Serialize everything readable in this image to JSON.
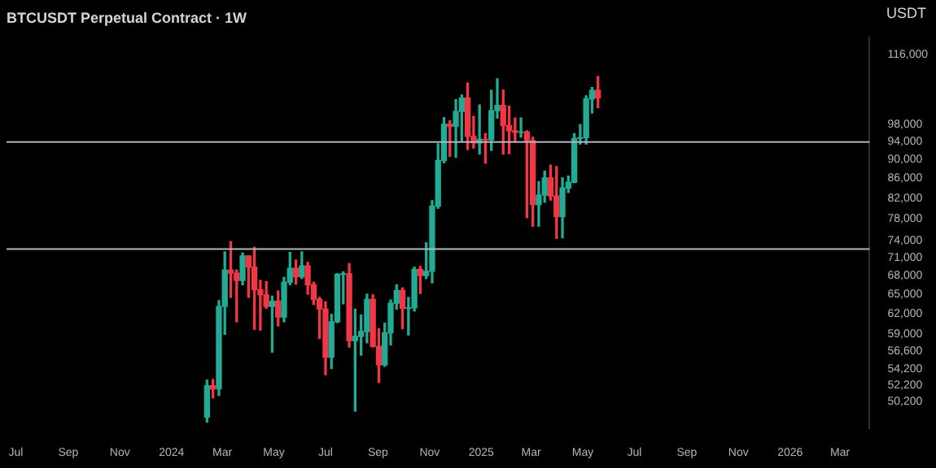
{
  "chart_data": {
    "type": "candlestick",
    "title": "BTCUSDT Perpetual Contract · 1W",
    "annotations": [
      "USDT"
    ],
    "x": [
      "2024-02-12",
      "2024-02-19",
      "2024-02-26",
      "2024-03-04",
      "2024-03-11",
      "2024-03-18",
      "2024-03-25",
      "2024-04-01",
      "2024-04-08",
      "2024-04-15",
      "2024-04-22",
      "2024-04-29",
      "2024-05-06",
      "2024-05-13",
      "2024-05-20",
      "2024-05-27",
      "2024-06-03",
      "2024-06-10",
      "2024-06-17",
      "2024-06-24",
      "2024-07-01",
      "2024-07-08",
      "2024-07-15",
      "2024-07-22",
      "2024-07-29",
      "2024-08-05",
      "2024-08-12",
      "2024-08-19",
      "2024-08-26",
      "2024-09-02",
      "2024-09-09",
      "2024-09-16",
      "2024-09-23",
      "2024-09-30",
      "2024-10-07",
      "2024-10-14",
      "2024-10-21",
      "2024-10-28",
      "2024-11-04",
      "2024-11-11",
      "2024-11-18",
      "2024-11-25",
      "2024-12-02",
      "2024-12-09",
      "2024-12-16",
      "2024-12-23",
      "2024-12-30",
      "2025-01-06",
      "2025-01-13",
      "2025-01-20",
      "2025-01-27",
      "2025-02-03",
      "2025-02-10",
      "2025-02-17",
      "2025-02-24",
      "2025-03-03",
      "2025-03-10",
      "2025-03-17",
      "2025-03-24",
      "2025-03-31",
      "2025-04-07",
      "2025-04-14",
      "2025-04-21",
      "2025-04-28",
      "2025-05-05",
      "2025-05-12",
      "2025-05-19"
    ],
    "ohlc": [
      [
        48300,
        52800,
        47700,
        52100
      ],
      [
        52100,
        52900,
        50600,
        51700
      ],
      [
        51700,
        64000,
        50900,
        63100
      ],
      [
        63100,
        72000,
        59000,
        68900
      ],
      [
        68900,
        73800,
        64500,
        68400
      ],
      [
        68400,
        68900,
        60800,
        67200
      ],
      [
        67200,
        71800,
        66500,
        71300
      ],
      [
        71300,
        71300,
        64500,
        69400
      ],
      [
        69400,
        72800,
        59700,
        65700
      ],
      [
        65700,
        67200,
        59600,
        64900
      ],
      [
        64900,
        67000,
        62800,
        63100
      ],
      [
        63100,
        64700,
        56500,
        63900
      ],
      [
        63900,
        65500,
        60200,
        61500
      ],
      [
        61500,
        67700,
        60800,
        66900
      ],
      [
        66900,
        71900,
        66500,
        69200
      ],
      [
        69200,
        70600,
        66600,
        67800
      ],
      [
        67800,
        72000,
        67500,
        69600
      ],
      [
        69600,
        70200,
        65000,
        66500
      ],
      [
        66500,
        66900,
        63400,
        64200
      ],
      [
        64200,
        64500,
        58400,
        62700
      ],
      [
        62700,
        63800,
        53500,
        55800
      ],
      [
        55800,
        61900,
        54300,
        60800
      ],
      [
        60800,
        68300,
        60700,
        68200
      ],
      [
        68200,
        68600,
        63500,
        68300
      ],
      [
        68300,
        70000,
        57200,
        58100
      ],
      [
        58100,
        62700,
        49000,
        58700
      ],
      [
        58700,
        61800,
        56100,
        59400
      ],
      [
        59400,
        65000,
        57800,
        64200
      ],
      [
        64200,
        64900,
        57200,
        57300
      ],
      [
        57300,
        59800,
        52500,
        54800
      ],
      [
        54800,
        60600,
        54600,
        59200
      ],
      [
        59200,
        64100,
        57500,
        63600
      ],
      [
        63600,
        66500,
        62700,
        65600
      ],
      [
        65600,
        66000,
        59800,
        62800
      ],
      [
        62800,
        64500,
        58900,
        62900
      ],
      [
        62900,
        69400,
        62400,
        69000
      ],
      [
        69000,
        69500,
        65100,
        68000
      ],
      [
        68000,
        73600,
        67500,
        68700
      ],
      [
        68700,
        81500,
        66800,
        80400
      ],
      [
        80400,
        93500,
        80000,
        89800
      ],
      [
        89800,
        99600,
        89300,
        98000
      ],
      [
        98000,
        98900,
        90700,
        97500
      ],
      [
        97500,
        104000,
        90500,
        101100
      ],
      [
        101100,
        105200,
        94100,
        104400
      ],
      [
        104400,
        108300,
        92200,
        95200
      ],
      [
        95200,
        99900,
        92500,
        93700
      ],
      [
        93700,
        102700,
        91200,
        94500
      ],
      [
        94500,
        95800,
        89200,
        94400
      ],
      [
        94400,
        106400,
        92000,
        101300
      ],
      [
        101300,
        109400,
        99500,
        102600
      ],
      [
        102600,
        106500,
        91200,
        97700
      ],
      [
        97700,
        102400,
        91300,
        96500
      ],
      [
        96500,
        99500,
        94100,
        96100
      ],
      [
        96100,
        99500,
        95000,
        96200
      ],
      [
        96200,
        96500,
        78200,
        94200
      ],
      [
        94200,
        95000,
        76600,
        80700
      ],
      [
        80700,
        85300,
        76600,
        82600
      ],
      [
        82600,
        87500,
        81200,
        86100
      ],
      [
        86100,
        88800,
        81600,
        82400
      ],
      [
        82400,
        88500,
        74400,
        78400
      ],
      [
        78400,
        86100,
        74500,
        84000
      ],
      [
        84000,
        86500,
        83100,
        85200
      ],
      [
        85200,
        95800,
        85100,
        94700
      ],
      [
        94700,
        97900,
        93400,
        94900
      ],
      [
        94900,
        105000,
        93400,
        104200
      ],
      [
        104200,
        107100,
        100700,
        106400
      ],
      [
        106400,
        110000,
        102000,
        104500
      ]
    ],
    "colors": [
      "#22ab94",
      "#f23645",
      "#22ab94",
      "#22ab94",
      "#f23645",
      "#f23645",
      "#22ab94",
      "#f23645",
      "#f23645",
      "#f23645",
      "#f23645",
      "#22ab94",
      "#f23645",
      "#22ab94",
      "#22ab94",
      "#f23645",
      "#22ab94",
      "#f23645",
      "#f23645",
      "#f23645",
      "#f23645",
      "#22ab94",
      "#22ab94",
      "#22ab94",
      "#f23645",
      "#22ab94",
      "#22ab94",
      "#22ab94",
      "#f23645",
      "#f23645",
      "#22ab94",
      "#22ab94",
      "#22ab94",
      "#f23645",
      "#22ab94",
      "#22ab94",
      "#f23645",
      "#22ab94",
      "#22ab94",
      "#22ab94",
      "#22ab94",
      "#f23645",
      "#22ab94",
      "#22ab94",
      "#f23645",
      "#f23645",
      "#22ab94",
      "#f23645",
      "#22ab94",
      "#22ab94",
      "#f23645",
      "#f23645",
      "#f23645",
      "#22ab94",
      "#f23645",
      "#f23645",
      "#22ab94",
      "#22ab94",
      "#f23645",
      "#f23645",
      "#22ab94",
      "#22ab94",
      "#22ab94",
      "#22ab94",
      "#22ab94",
      "#22ab94",
      "#f23645"
    ],
    "log": "y",
    "ylim": [
      47000,
      121000
    ],
    "yticks": [
      {
        "value": 50200,
        "label": "50,200"
      },
      {
        "value": 52200,
        "label": "52,200"
      },
      {
        "value": 54200,
        "label": "54,200"
      },
      {
        "value": 56600,
        "label": "56,600"
      },
      {
        "value": 59000,
        "label": "59,000"
      },
      {
        "value": 62000,
        "label": "62,000"
      },
      {
        "value": 65000,
        "label": "65,000"
      },
      {
        "value": 68000,
        "label": "68,000"
      },
      {
        "value": 71000,
        "label": "71,000"
      },
      {
        "value": 74000,
        "label": "74,000"
      },
      {
        "value": 78000,
        "label": "78,000"
      },
      {
        "value": 82000,
        "label": "82,000"
      },
      {
        "value": 86000,
        "label": "86,000"
      },
      {
        "value": 90000,
        "label": "90,000"
      },
      {
        "value": 94000,
        "label": "94,000"
      },
      {
        "value": 98000,
        "label": "98,000"
      },
      {
        "value": 116000,
        "label": "116,000"
      }
    ],
    "xlim": [
      "2023-06-20",
      "2026-04-05"
    ],
    "xticks": [
      {
        "value": "2023-07-01",
        "label": "Jul"
      },
      {
        "value": "2023-09-01",
        "label": "Sep"
      },
      {
        "value": "2023-11-01",
        "label": "Nov"
      },
      {
        "value": "2024-01-01",
        "label": "2024"
      },
      {
        "value": "2024-03-01",
        "label": "Mar"
      },
      {
        "value": "2024-05-01",
        "label": "May"
      },
      {
        "value": "2024-07-01",
        "label": "Jul"
      },
      {
        "value": "2024-09-01",
        "label": "Sep"
      },
      {
        "value": "2024-11-01",
        "label": "Nov"
      },
      {
        "value": "2025-01-01",
        "label": "2025"
      },
      {
        "value": "2025-03-01",
        "label": "Mar"
      },
      {
        "value": "2025-05-01",
        "label": "May"
      },
      {
        "value": "2025-07-01",
        "label": "Jul"
      },
      {
        "value": "2025-09-01",
        "label": "Sep"
      },
      {
        "value": "2025-11-01",
        "label": "Nov"
      },
      {
        "value": "2026-01-01",
        "label": "2026"
      },
      {
        "value": "2026-03-01",
        "label": "Mar"
      }
    ],
    "ref_lines": [
      {
        "axis": "y",
        "value": 72500,
        "color": "#b2b5be"
      },
      {
        "axis": "y",
        "value": 93900,
        "color": "#b2b5be"
      }
    ],
    "grid": false,
    "legend": false
  }
}
